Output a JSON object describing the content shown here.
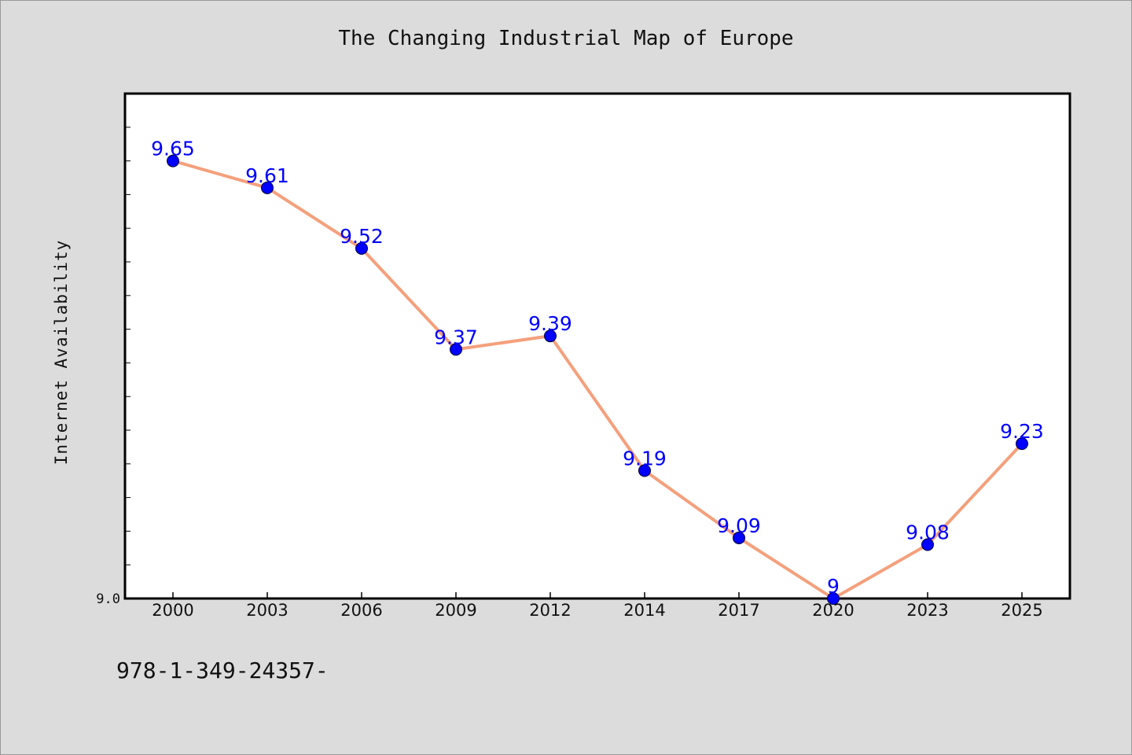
{
  "chart_data": {
    "type": "line",
    "title": "The Changing Industrial Map of Europe",
    "xlabel": "",
    "ylabel": "Internet Availability",
    "categories": [
      "2000",
      "2003",
      "2006",
      "2009",
      "2012",
      "2014",
      "2017",
      "2020",
      "2023",
      "2025"
    ],
    "series": [
      {
        "values": [
          9.65,
          9.61,
          9.52,
          9.37,
          9.39,
          9.19,
          9.09,
          9,
          9.08,
          9.23
        ],
        "data_labels": [
          "9.65",
          "9.61",
          "9.52",
          "9.37",
          "9.39",
          "9.19",
          "9.09",
          "9",
          "9.08",
          "9.23"
        ]
      }
    ],
    "ylim": [
      9.0,
      9.75
    ],
    "ytick_labels": [
      {
        "value": 9.0,
        "label": "9.0"
      }
    ],
    "grid": false,
    "line_color": "#f4a07c",
    "marker_color": "#0000ff",
    "label_color": "#0000ff"
  },
  "footer": {
    "isbn": "978-1-349-24357-"
  }
}
